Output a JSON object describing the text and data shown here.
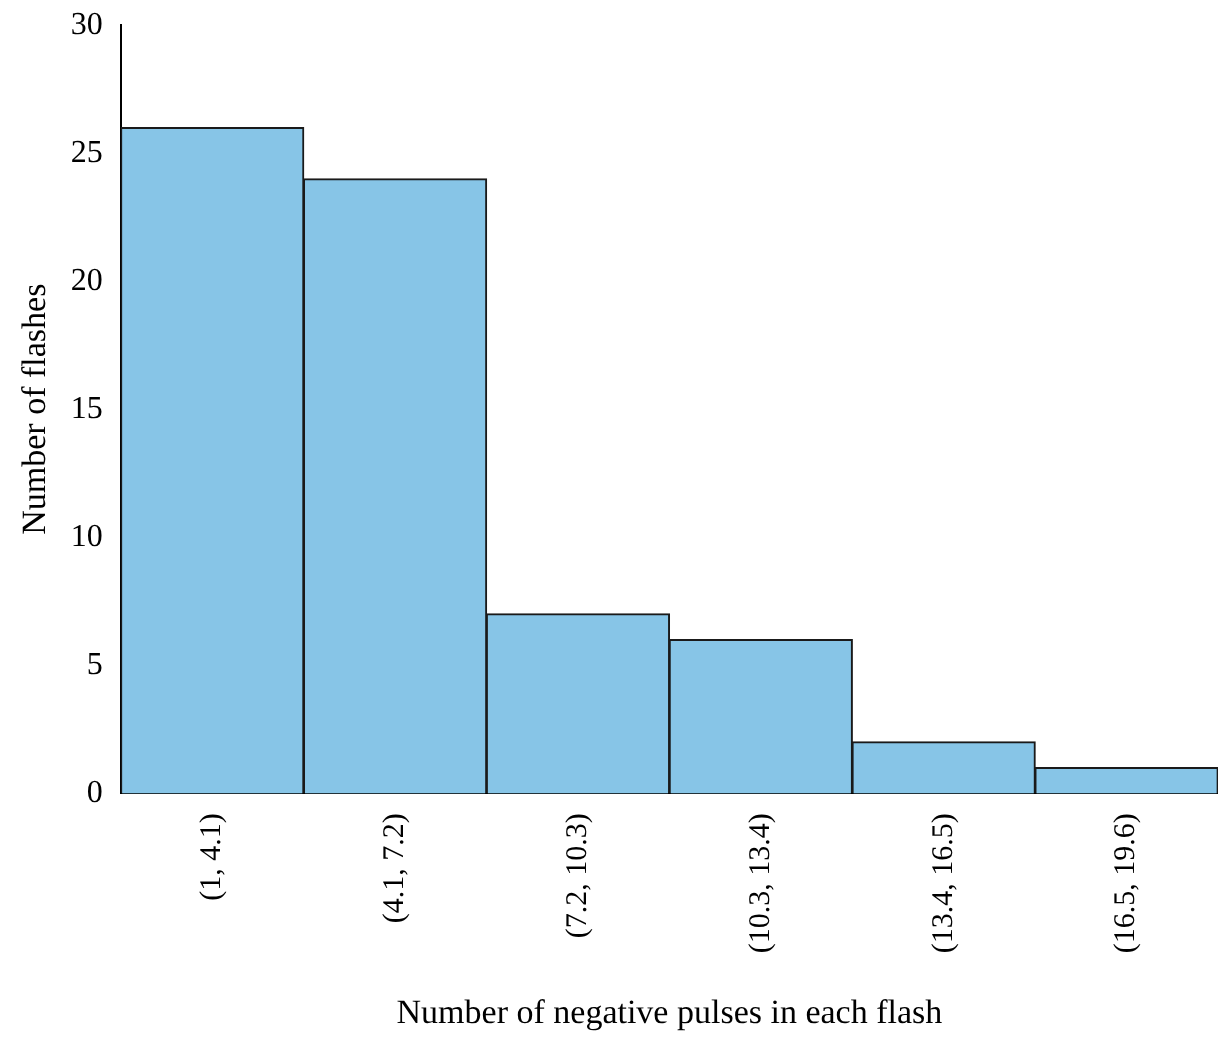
{
  "chart_data": {
    "type": "bar",
    "xlabel": "Number of negative pulses in each flash",
    "ylabel": "Number of flashes",
    "categories": [
      "(1, 4.1)",
      "(4.1, 7.2)",
      "(7.2, 10.3)",
      "(10.3, 13.4)",
      "(13.4, 16.5)",
      "(16.5, 19.6)"
    ],
    "values": [
      26,
      24,
      7,
      6,
      2,
      1
    ],
    "color": "#87c5e7",
    "ylim": [
      0,
      30
    ],
    "yticks": [
      0,
      5,
      10,
      15,
      20,
      25,
      30
    ],
    "grid": false,
    "legend": false
  }
}
